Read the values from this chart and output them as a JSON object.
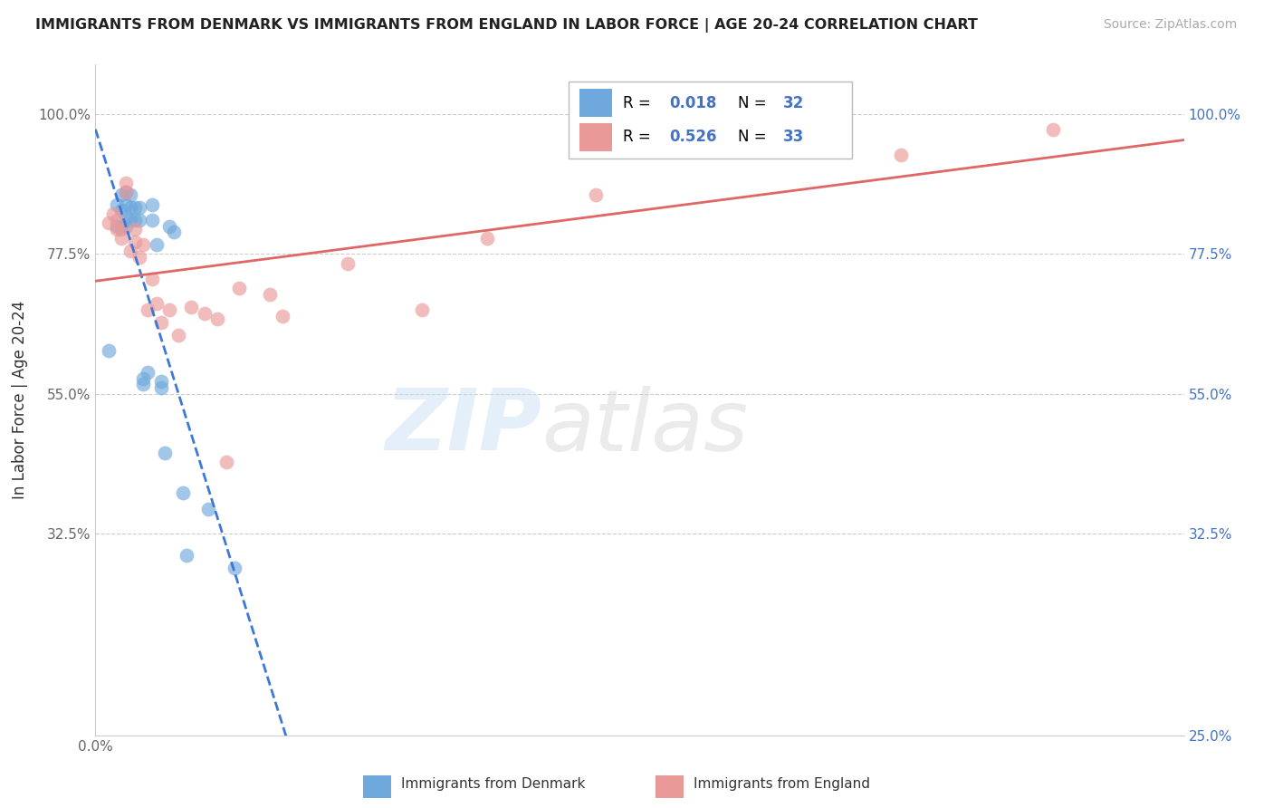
{
  "title": "IMMIGRANTS FROM DENMARK VS IMMIGRANTS FROM ENGLAND IN LABOR FORCE | AGE 20-24 CORRELATION CHART",
  "source": "Source: ZipAtlas.com",
  "ylabel": "In Labor Force | Age 20-24",
  "xlim": [
    0.0,
    0.25
  ],
  "ylim": [
    0.0,
    1.08
  ],
  "denmark_color": "#6fa8dc",
  "england_color": "#ea9999",
  "denmark_line_color": "#3c78d8",
  "england_line_color": "#e06666",
  "grid_color": "#cccccc",
  "background_color": "#ffffff",
  "r_denmark": "0.018",
  "n_denmark": "32",
  "r_england": "0.526",
  "n_england": "33",
  "legend_text_color": "#4472c4",
  "right_axis_color": "#4472c4",
  "denmark_x": [
    0.003,
    0.005,
    0.005,
    0.006,
    0.006,
    0.006,
    0.007,
    0.007,
    0.007,
    0.007,
    0.008,
    0.008,
    0.008,
    0.009,
    0.009,
    0.01,
    0.01,
    0.011,
    0.011,
    0.012,
    0.013,
    0.013,
    0.014,
    0.015,
    0.015,
    0.016,
    0.017,
    0.018,
    0.02,
    0.021,
    0.026,
    0.032
  ],
  "denmark_y": [
    0.62,
    0.82,
    0.855,
    0.82,
    0.845,
    0.87,
    0.82,
    0.835,
    0.855,
    0.875,
    0.83,
    0.85,
    0.87,
    0.83,
    0.85,
    0.83,
    0.85,
    0.565,
    0.575,
    0.585,
    0.83,
    0.855,
    0.79,
    0.56,
    0.57,
    0.455,
    0.82,
    0.81,
    0.39,
    0.29,
    0.365,
    0.27
  ],
  "england_x": [
    0.003,
    0.004,
    0.005,
    0.005,
    0.006,
    0.006,
    0.007,
    0.007,
    0.008,
    0.009,
    0.009,
    0.01,
    0.011,
    0.012,
    0.013,
    0.014,
    0.015,
    0.017,
    0.019,
    0.022,
    0.025,
    0.028,
    0.03,
    0.033,
    0.04,
    0.043,
    0.058,
    0.075,
    0.09,
    0.115,
    0.15,
    0.185,
    0.22
  ],
  "england_y": [
    0.825,
    0.84,
    0.815,
    0.83,
    0.8,
    0.815,
    0.875,
    0.89,
    0.78,
    0.795,
    0.815,
    0.77,
    0.79,
    0.685,
    0.735,
    0.695,
    0.665,
    0.685,
    0.645,
    0.69,
    0.68,
    0.67,
    0.44,
    0.72,
    0.71,
    0.675,
    0.76,
    0.685,
    0.8,
    0.87,
    0.955,
    0.935,
    0.975
  ]
}
